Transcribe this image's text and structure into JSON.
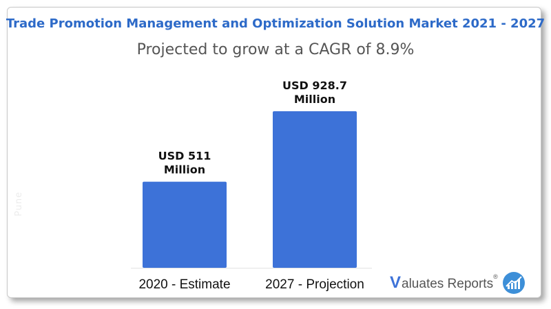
{
  "header": {
    "title": "Trade Promotion Management and Optimization Solution Market 2021 - 2027",
    "subtitle": "Projected to grow at a CAGR of 8.9%"
  },
  "watermark": "Pune",
  "logo": {
    "brand_first_letter": "V",
    "brand_rest": "aluates Reports",
    "registered": "®",
    "icon": "rising-chart-circle-icon"
  },
  "colors": {
    "title": "#2d6ac8",
    "bar": "#3d72d8"
  },
  "chart_data": {
    "type": "bar",
    "title": "Trade Promotion Management and Optimization Solution Market 2021 - 2027",
    "subtitle": "Projected to grow at a CAGR of 8.9%",
    "categories": [
      "2020 - Estimate",
      "2027  - Projection"
    ],
    "values": [
      511,
      928.7
    ],
    "unit": "USD Million",
    "data_labels": [
      [
        "USD 511",
        "Million"
      ],
      [
        "USD 928.7",
        "Million"
      ]
    ],
    "xlabel": "",
    "ylabel": "",
    "ylim": [
      0,
      1100
    ],
    "grid": false,
    "legend": "none"
  }
}
